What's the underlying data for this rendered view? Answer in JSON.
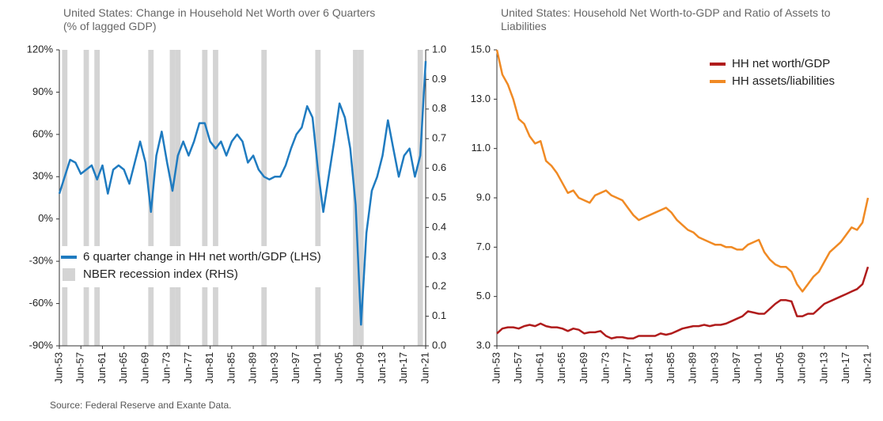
{
  "chart_data": [
    {
      "type": "line",
      "title": "United States: Change in Household Net Worth over 6 Quarters",
      "subtitle": "(% of lagged GDP)",
      "categories": [
        "Jun-53",
        null,
        null,
        null,
        "Jun-57",
        null,
        null,
        null,
        "Jun-61",
        null,
        null,
        null,
        "Jun-65",
        null,
        null,
        null,
        "Jun-69",
        null,
        null,
        null,
        "Jun-73",
        null,
        null,
        null,
        "Jun-77",
        null,
        null,
        null,
        "Jun-81",
        null,
        null,
        null,
        "Jun-85",
        null,
        null,
        null,
        "Jun-89",
        null,
        null,
        null,
        "Jun-93",
        null,
        null,
        null,
        "Jun-97",
        null,
        null,
        null,
        "Jun-01",
        null,
        null,
        null,
        "Jun-05",
        null,
        null,
        null,
        "Jun-09",
        null,
        null,
        null,
        "Jun-13",
        null,
        null,
        null,
        "Jun-17",
        null,
        null,
        null,
        "Jun-21"
      ],
      "series": [
        {
          "name": "6 quarter change in HH net worth/GDP (LHS)",
          "color": "#1f7bc0",
          "values": [
            18,
            30,
            42,
            40,
            32,
            35,
            38,
            28,
            38,
            18,
            35,
            38,
            35,
            25,
            40,
            55,
            40,
            5,
            45,
            62,
            40,
            20,
            45,
            55,
            45,
            55,
            68,
            68,
            55,
            50,
            55,
            45,
            55,
            60,
            55,
            40,
            45,
            35,
            30,
            28,
            30,
            30,
            38,
            50,
            60,
            65,
            80,
            72,
            35,
            5,
            30,
            55,
            82,
            72,
            50,
            10,
            -75,
            -10,
            20,
            30,
            45,
            70,
            50,
            30,
            45,
            50,
            30,
            45,
            112
          ]
        },
        {
          "name": "NBER recession index (RHS)",
          "type": "bar",
          "axis": "y2",
          "color": "#d4d4d4",
          "values": [
            0,
            1,
            0,
            0,
            0,
            1,
            0,
            1,
            0,
            0,
            0,
            0,
            0,
            0,
            0,
            0,
            0,
            1,
            0,
            0,
            0,
            1,
            1,
            0,
            0,
            0,
            0,
            1,
            0,
            1,
            0,
            0,
            0,
            0,
            0,
            0,
            0,
            0,
            1,
            0,
            0,
            0,
            0,
            0,
            0,
            0,
            0,
            0,
            1,
            0,
            0,
            0,
            0,
            0,
            0,
            1,
            1,
            0,
            0,
            0,
            0,
            0,
            0,
            0,
            0,
            0,
            0,
            1,
            0
          ]
        }
      ],
      "ylim": [
        -90,
        120
      ],
      "yticks": [
        {
          "value": -90,
          "label": "-90%"
        },
        {
          "value": -60,
          "label": "-60%"
        },
        {
          "value": -30,
          "label": "-30%"
        },
        {
          "value": 0,
          "label": "0%"
        },
        {
          "value": 30,
          "label": "30%"
        },
        {
          "value": 60,
          "label": "60%"
        },
        {
          "value": 90,
          "label": "90%"
        },
        {
          "value": 120,
          "label": "120%"
        }
      ],
      "y2lim": [
        0,
        1
      ],
      "y2ticks": [
        {
          "value": 0,
          "label": "0.0"
        },
        0.1,
        0.2,
        0.3,
        0.4,
        0.5,
        0.6,
        0.7,
        0.8,
        0.9,
        {
          "value": 1,
          "label": "1.0"
        }
      ],
      "legend": "lower left"
    },
    {
      "type": "line",
      "title": "United States: Household Net Worth-to-GDP and Ratio of Assets to Liabilities",
      "categories": [
        "Jun-53",
        null,
        null,
        null,
        "Jun-57",
        null,
        null,
        null,
        "Jun-61",
        null,
        null,
        null,
        "Jun-65",
        null,
        null,
        null,
        "Jun-69",
        null,
        null,
        null,
        "Jun-73",
        null,
        null,
        null,
        "Jun-77",
        null,
        null,
        null,
        "Jun-81",
        null,
        null,
        null,
        "Jun-85",
        null,
        null,
        null,
        "Jun-89",
        null,
        null,
        null,
        "Jun-93",
        null,
        null,
        null,
        "Jun-97",
        null,
        null,
        null,
        "Jun-01",
        null,
        null,
        null,
        "Jun-05",
        null,
        null,
        null,
        "Jun-09",
        null,
        null,
        null,
        "Jun-13",
        null,
        null,
        null,
        "Jun-17",
        null,
        null,
        null,
        "Jun-21"
      ],
      "series": [
        {
          "name": "HH net worth/GDP",
          "color": "#b01c1c",
          "values": [
            3.5,
            3.7,
            3.75,
            3.75,
            3.7,
            3.8,
            3.85,
            3.8,
            3.9,
            3.8,
            3.75,
            3.75,
            3.7,
            3.6,
            3.7,
            3.65,
            3.5,
            3.55,
            3.55,
            3.6,
            3.4,
            3.3,
            3.35,
            3.35,
            3.3,
            3.3,
            3.4,
            3.4,
            3.4,
            3.4,
            3.5,
            3.45,
            3.5,
            3.6,
            3.7,
            3.75,
            3.8,
            3.8,
            3.85,
            3.8,
            3.85,
            3.85,
            3.9,
            4,
            4.1,
            4.2,
            4.4,
            4.35,
            4.3,
            4.3,
            4.5,
            4.7,
            4.85,
            4.85,
            4.8,
            4.2,
            4.2,
            4.3,
            4.3,
            4.5,
            4.7,
            4.8,
            4.9,
            5,
            5.1,
            5.2,
            5.3,
            5.5,
            6.2
          ]
        },
        {
          "name": "HH assets/liabilities",
          "color": "#f08a24",
          "values": [
            15,
            14,
            13.6,
            13,
            12.2,
            12,
            11.5,
            11.2,
            11.3,
            10.5,
            10.3,
            10,
            9.6,
            9.2,
            9.3,
            9,
            8.9,
            8.8,
            9.1,
            9.2,
            9.3,
            9.1,
            9,
            8.9,
            8.6,
            8.3,
            8.1,
            8.2,
            8.3,
            8.4,
            8.5,
            8.6,
            8.4,
            8.1,
            7.9,
            7.7,
            7.6,
            7.4,
            7.3,
            7.2,
            7.1,
            7.1,
            7,
            7,
            6.9,
            6.9,
            7.1,
            7.2,
            7.3,
            6.8,
            6.5,
            6.3,
            6.2,
            6.2,
            6,
            5.5,
            5.2,
            5.5,
            5.8,
            6,
            6.4,
            6.8,
            7,
            7.2,
            7.5,
            7.8,
            7.7,
            8,
            9
          ]
        }
      ],
      "ylim": [
        3,
        15
      ],
      "yticks": [
        {
          "value": 3,
          "label": "3.0"
        },
        {
          "value": 5,
          "label": "5.0"
        },
        {
          "value": 7,
          "label": "7.0"
        },
        {
          "value": 9,
          "label": "9.0"
        },
        {
          "value": 11,
          "label": "11.0"
        },
        {
          "value": 13,
          "label": "13.0"
        },
        {
          "value": 15,
          "label": "15.0"
        }
      ],
      "legend": "upper right"
    }
  ],
  "source": "Source: Federal Reserve and Exante Data."
}
